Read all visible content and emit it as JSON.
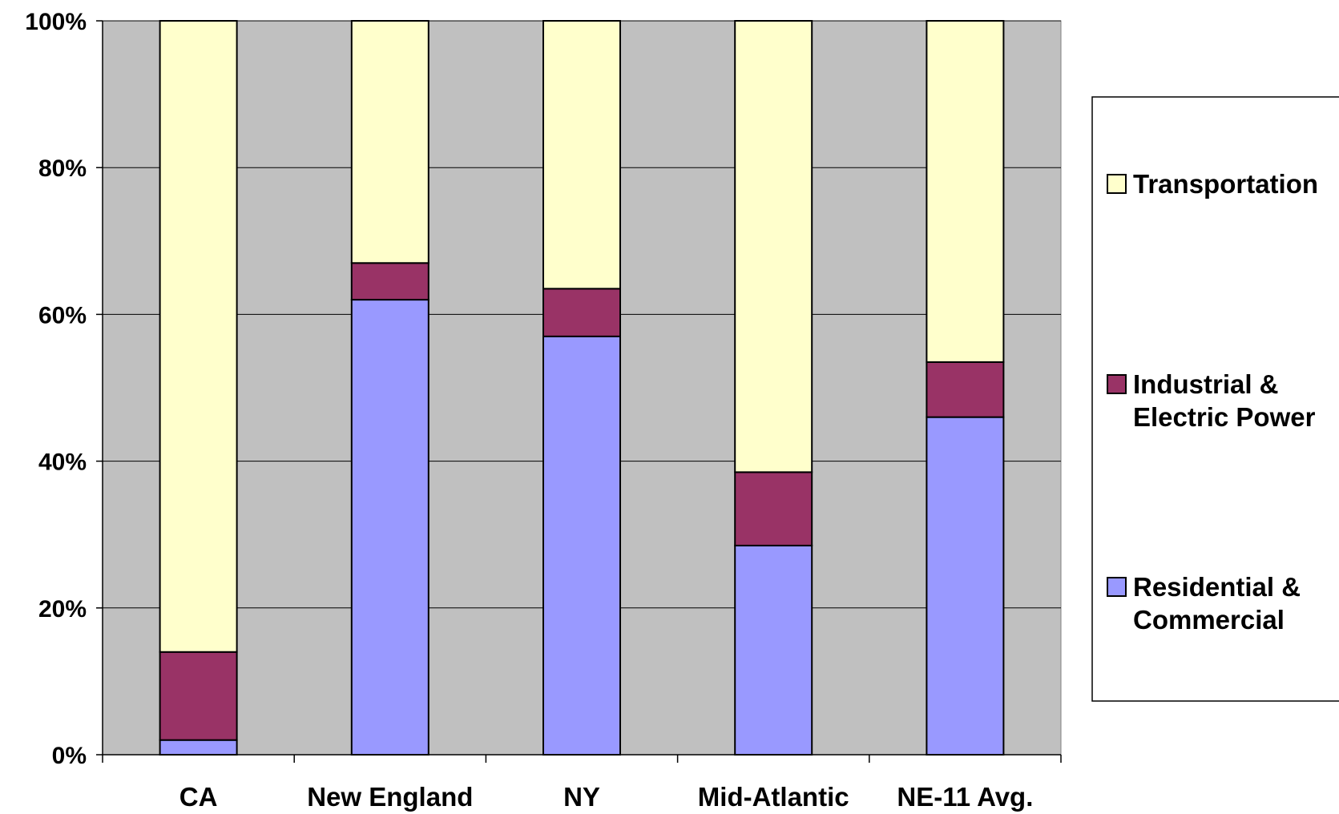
{
  "chart_data": {
    "type": "bar",
    "stacked": true,
    "normalized": true,
    "categories": [
      "CA",
      "New England",
      "NY",
      "Mid-Atlantic",
      "NE-11 Avg."
    ],
    "series": [
      {
        "name": "Residential & Commercial",
        "legend_lines": [
          "Residential &",
          "Commercial"
        ],
        "color": "#9999ff",
        "values": [
          2,
          62,
          57,
          28.5,
          46
        ]
      },
      {
        "name": "Industrial & Electric Power",
        "legend_lines": [
          "Industrial &",
          "Electric Power"
        ],
        "color": "#993366",
        "values": [
          12,
          5,
          6.5,
          10,
          7.5
        ]
      },
      {
        "name": "Transportation",
        "legend_lines": [
          "Transportation"
        ],
        "color": "#ffffcc",
        "values": [
          86,
          33,
          36.5,
          61.5,
          46.5
        ]
      }
    ],
    "ylim": [
      0,
      100
    ],
    "y_ticks": [
      "0%",
      "20%",
      "40%",
      "60%",
      "80%",
      "100%"
    ],
    "y_tick_values": [
      0,
      20,
      40,
      60,
      80,
      100
    ],
    "grid": true,
    "plot_background": "#c0c0c0",
    "legend_position": "right"
  }
}
